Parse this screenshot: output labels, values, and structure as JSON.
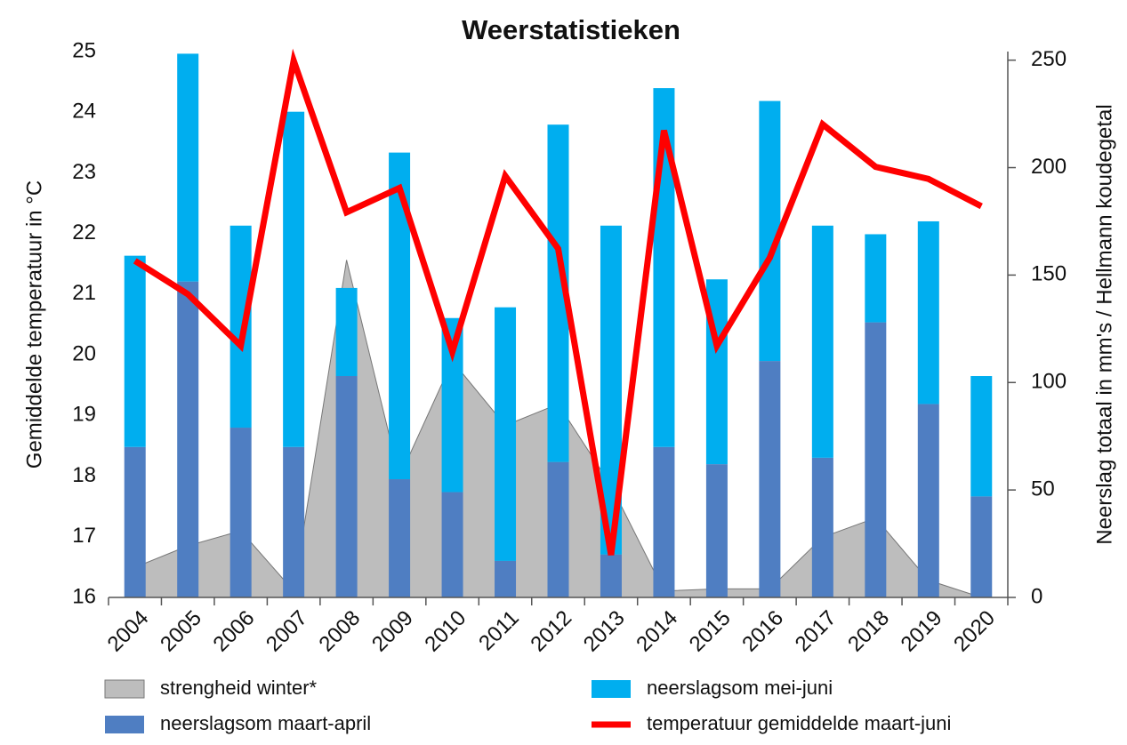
{
  "chart_data": {
    "type": "combo",
    "title": "Weerstatistieken",
    "ylabel": "Gemiddelde  temperatuur in °C",
    "y2label": "Neerslag  totaal in mm's  /  Hellmann koudegetal",
    "categories": [
      "2004",
      "2005",
      "2006",
      "2007",
      "2008",
      "2009",
      "2010",
      "2011",
      "2012",
      "2013",
      "2014",
      "2015",
      "2016",
      "2017",
      "2018",
      "2019",
      "2020"
    ],
    "ylim": [
      16,
      25
    ],
    "yticks": [
      16,
      17,
      18,
      19,
      20,
      21,
      22,
      23,
      24,
      25
    ],
    "y2lim": [
      0,
      254
    ],
    "y2ticks": [
      0,
      50,
      100,
      150,
      200,
      250
    ],
    "series": [
      {
        "name": "neerslagsom maart-april",
        "type": "bar",
        "axis": "y2",
        "color": "#4f7ec2",
        "values": [
          70,
          147,
          79,
          70,
          103,
          55,
          49,
          17,
          63,
          20,
          70,
          62,
          110,
          65,
          128,
          90,
          47
        ]
      },
      {
        "name": "neerslagsom mei-juni",
        "type": "bar",
        "axis": "y2",
        "color": "#00aeef",
        "values": [
          89,
          106,
          94,
          156,
          41,
          152,
          81,
          118,
          157,
          153,
          167,
          86,
          121,
          108,
          41,
          85,
          56
        ]
      },
      {
        "name": "strengheid winter*",
        "type": "area",
        "axis": "y2",
        "color": "#bdbdbd",
        "values": [
          14,
          24,
          31,
          3,
          157,
          56,
          110,
          80,
          90,
          52,
          3,
          4,
          4,
          28,
          37,
          8,
          0
        ]
      },
      {
        "name": "temperatuur gemiddelde maart-juni",
        "type": "line",
        "color": "#ff0000",
        "values": [
          21.55,
          21.0,
          20.15,
          24.85,
          22.35,
          22.75,
          20.05,
          22.95,
          21.75,
          16.7,
          23.7,
          20.15,
          21.6,
          23.8,
          23.1,
          22.9,
          22.45
        ]
      }
    ]
  }
}
